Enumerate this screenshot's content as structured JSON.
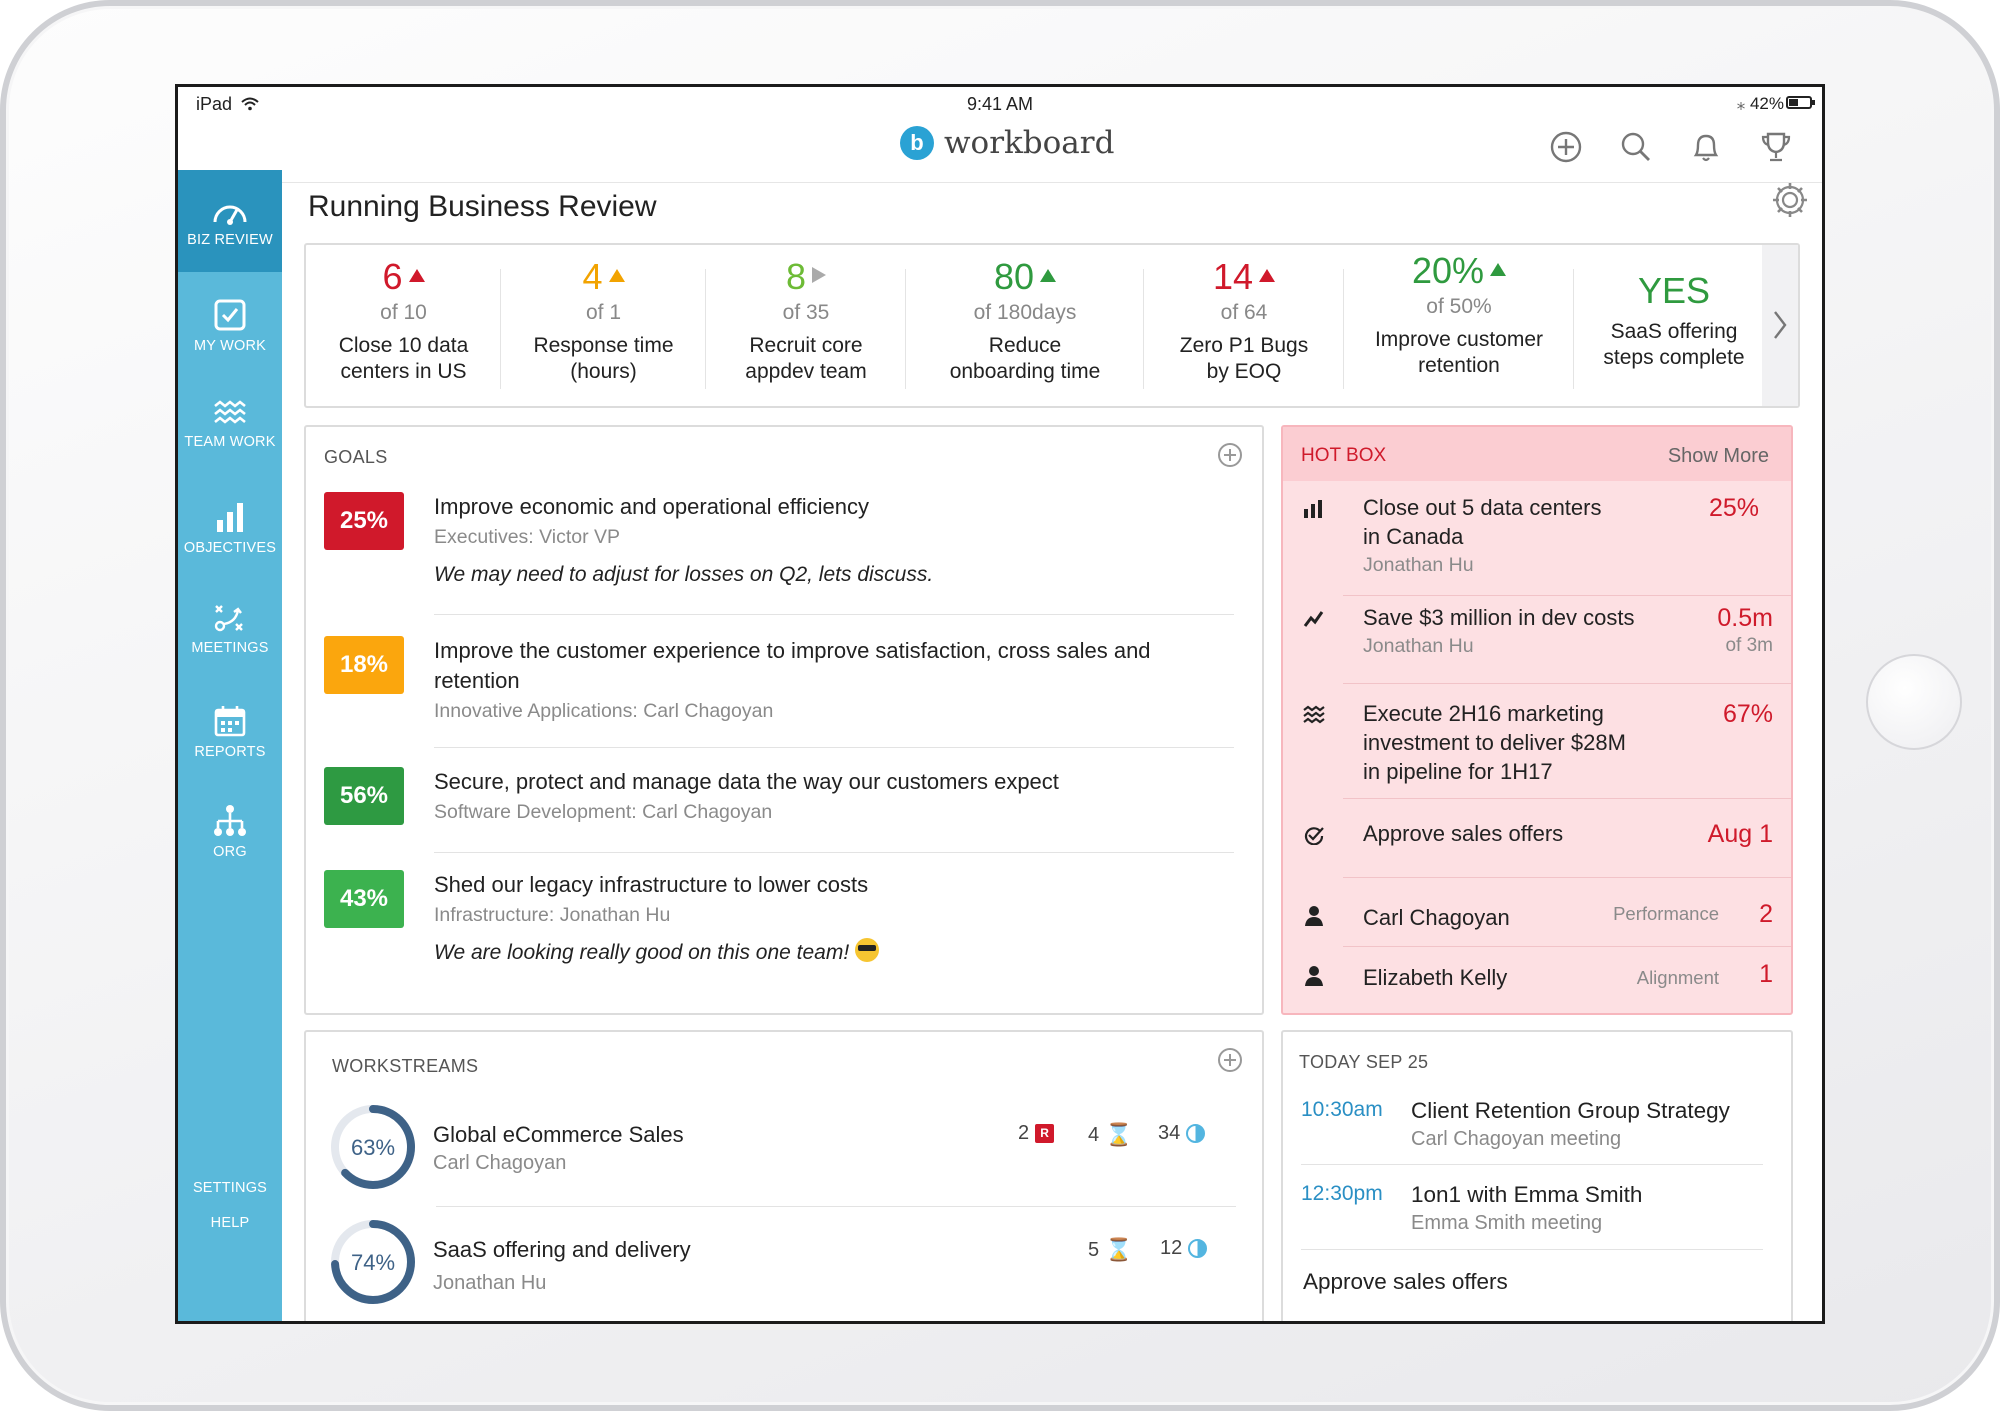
{
  "status": {
    "device": "iPad",
    "time": "9:41 AM",
    "battery": "42%"
  },
  "app": {
    "name": "workboard",
    "logo_letter": "b"
  },
  "sidebar": {
    "items": [
      {
        "label": "BIZ REVIEW",
        "icon": "gauge-icon",
        "active": true
      },
      {
        "label": "MY WORK",
        "icon": "checkbox-icon"
      },
      {
        "label": "TEAM WORK",
        "icon": "waves-icon"
      },
      {
        "label": "OBJECTIVES",
        "icon": "bar-chart-icon"
      },
      {
        "label": "MEETINGS",
        "icon": "strategy-icon"
      },
      {
        "label": "REPORTS",
        "icon": "calendar-icon"
      },
      {
        "label": "ORG",
        "icon": "org-chart-icon"
      }
    ],
    "settings": "SETTINGS",
    "help": "HELP"
  },
  "page": {
    "title": "Running Business Review"
  },
  "kpis": [
    {
      "value": "6",
      "of": "of 10",
      "label_1": "Close 10 data",
      "label_2": "centers in US",
      "color": "#d0192b",
      "trend": "up-red"
    },
    {
      "value": "4",
      "of": "of 1",
      "label_1": "Response time",
      "label_2": "(hours)",
      "color": "#f2a300",
      "trend": "up-orange"
    },
    {
      "value": "8",
      "of": "of 35",
      "label_1": "Recruit core",
      "label_2": "appdev team",
      "color": "#6dbb36",
      "trend": "flat-grey"
    },
    {
      "value": "80",
      "of": "of 180days",
      "label_1": "Reduce",
      "label_2": "onboarding time",
      "color": "#2f9a3f",
      "trend": "up-green"
    },
    {
      "value": "14",
      "of": "of 64",
      "label_1": "Zero P1 Bugs",
      "label_2": "by EOQ",
      "color": "#d0192b",
      "trend": "up-red"
    },
    {
      "value": "20%",
      "of": "of 50%",
      "label_1": "Improve customer",
      "label_2": "retention",
      "color": "#2f9a3f",
      "trend": "up-green"
    },
    {
      "value": "YES",
      "of": "",
      "label_1": "SaaS offering",
      "label_2": "steps complete",
      "color": "#2f9a3f",
      "trend": ""
    }
  ],
  "goals": {
    "title": "GOALS",
    "items": [
      {
        "pct": "25%",
        "color": "#d0192b",
        "title": "Improve economic and operational efficiency",
        "owner": "Executives: Victor VP",
        "note": "We may need to adjust for losses on Q2, lets discuss."
      },
      {
        "pct": "18%",
        "color": "#fba60d",
        "title": "Improve the customer experience to improve satisfaction, cross sales and retention",
        "owner": "Innovative Applications: Carl Chagoyan",
        "note": ""
      },
      {
        "pct": "56%",
        "color": "#2e9a42",
        "title": "Secure, protect and manage data the way our customers expect",
        "owner": "Software Development: Carl Chagoyan",
        "note": ""
      },
      {
        "pct": "43%",
        "color": "#3cb24f",
        "title": "Shed our legacy infrastructure to lower costs",
        "owner": "Infrastructure: Jonathan Hu",
        "note": "We are looking really good on this one team!"
      }
    ]
  },
  "hotbox": {
    "title": "HOT BOX",
    "show_more": "Show More",
    "items": [
      {
        "icon": "bar-chart-icon",
        "title_1": "Close out 5 data centers",
        "title_2": "in Canada",
        "owner": "Jonathan Hu",
        "value": "25%",
        "sub": ""
      },
      {
        "icon": "trend-line-icon",
        "title_1": "Save $3 million in dev costs",
        "title_2": "",
        "owner": "Jonathan Hu",
        "value": "0.5m",
        "sub": "of 3m"
      },
      {
        "icon": "waves-icon",
        "title_1": "Execute 2H16 marketing",
        "title_2": "investment to deliver $28M",
        "title_3": "in pipeline for 1H17",
        "value": "67%"
      },
      {
        "icon": "check-circle-icon",
        "title_1": "Approve sales offers",
        "value": "Aug 1"
      },
      {
        "icon": "person-icon",
        "title_1": "Carl Chagoyan",
        "category": "Performance",
        "value": "2"
      },
      {
        "icon": "person-icon",
        "title_1": "Elizabeth Kelly",
        "category": "Alignment",
        "value": "1"
      }
    ]
  },
  "workstreams": {
    "title": "WORKSTREAMS",
    "items": [
      {
        "pct": "63%",
        "progress": 0.63,
        "title": "Global eCommerce Sales",
        "owner": "Carl Chagoyan",
        "r_count": "2",
        "hourglass_count": "4",
        "half_count": "34"
      },
      {
        "pct": "74%",
        "progress": 0.74,
        "title": "SaaS offering and delivery",
        "owner": "Jonathan Hu",
        "r_count": "",
        "hourglass_count": "5",
        "half_count": "12"
      }
    ]
  },
  "today": {
    "title": "TODAY SEP 25",
    "events": [
      {
        "time": "10:30am",
        "title": "Client Retention Group Strategy",
        "sub": "Carl Chagoyan meeting"
      },
      {
        "time": "12:30pm",
        "title": "1on1 with Emma Smith",
        "sub": "Emma Smith meeting"
      }
    ],
    "task": "Approve sales offers"
  }
}
